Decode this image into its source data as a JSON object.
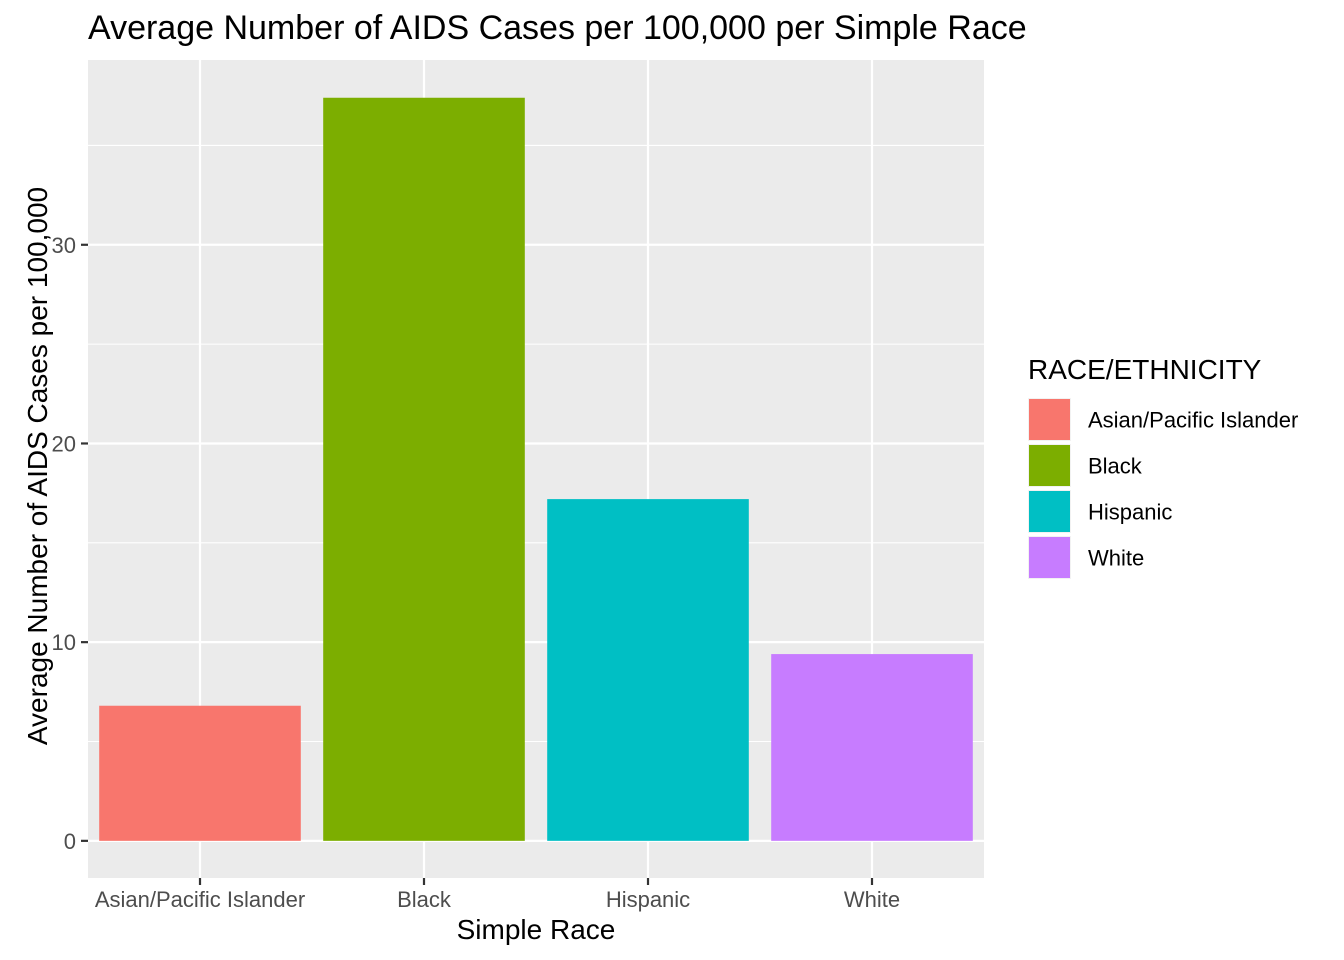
{
  "chart_data": {
    "type": "bar",
    "title": "Average Number of AIDS Cases per 100,000 per Simple Race",
    "xlabel": "Simple Race",
    "ylabel": "Average Number of AIDS Cases per 100,000",
    "categories": [
      "Asian/Pacific Islander",
      "Black",
      "Hispanic",
      "White"
    ],
    "values": [
      6.8,
      37.4,
      17.2,
      9.4
    ],
    "colors": [
      "#F8766D",
      "#7CAE00",
      "#00BFC4",
      "#C77CFF"
    ],
    "ylim": [
      -1.87,
      39.3
    ],
    "yticks": [
      0,
      10,
      20,
      30
    ],
    "ytick_labels": [
      "0",
      "10",
      "20",
      "30"
    ],
    "grid": true,
    "legend": {
      "title": "RACE/ETHNICITY",
      "position": "right",
      "entries": [
        "Asian/Pacific Islander",
        "Black",
        "Hispanic",
        "White"
      ]
    },
    "panel_background": "#EBEBEB",
    "grid_color": "#FFFFFF"
  }
}
